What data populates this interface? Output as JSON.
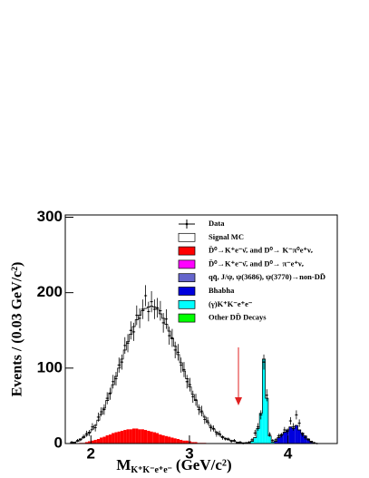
{
  "chart_data": {
    "type": "histogram",
    "y_label": "Events / (0.03 GeV/c²)",
    "x_label": {
      "main": "M",
      "sub": "K⁺K⁻e⁺e⁻",
      "unit": "(GeV/c²)"
    },
    "bins": [
      1.79,
      1.82,
      1.85,
      1.88,
      1.91,
      1.94,
      1.97,
      2.0,
      2.03,
      2.06,
      2.09,
      2.12,
      2.15,
      2.18,
      2.21,
      2.24,
      2.27,
      2.3,
      2.33,
      2.36,
      2.39,
      2.42,
      2.45,
      2.48,
      2.51,
      2.54,
      2.57,
      2.6,
      2.63,
      2.66,
      2.69,
      2.72,
      2.75,
      2.78,
      2.81,
      2.84,
      2.87,
      2.9,
      2.93,
      2.96,
      2.99,
      3.02,
      3.05,
      3.08,
      3.11,
      3.14,
      3.17,
      3.2,
      3.23,
      3.26,
      3.29,
      3.32,
      3.35,
      3.38,
      3.41,
      3.44,
      3.47,
      3.5,
      3.53,
      3.56,
      3.59,
      3.62,
      3.65,
      3.68,
      3.71,
      3.74,
      3.77,
      3.8,
      3.83,
      3.86,
      3.89,
      3.92,
      3.95,
      3.98,
      4.01,
      4.04,
      4.07,
      4.1,
      4.13,
      4.16,
      4.19,
      4.22,
      4.25,
      4.28,
      4.31
    ],
    "xlim": [
      1.74,
      4.5
    ],
    "xticks": [
      2,
      3,
      4
    ],
    "ylim": [
      0,
      303
    ],
    "yticks": [
      0,
      100,
      200,
      300
    ],
    "series": [
      {
        "name": "Data",
        "style": "points",
        "color": "#000000",
        "values": [
          2,
          1,
          4,
          5,
          9,
          13,
          14,
          22,
          21,
          35,
          42,
          45,
          60,
          66,
          82,
          86,
          104,
          108,
          130,
          133,
          150,
          148,
          170,
          166,
          178,
          196,
          175,
          188,
          178,
          180,
          176,
          160,
          165,
          143,
          140,
          124,
          121,
          104,
          98,
          82,
          78,
          62,
          58,
          45,
          43,
          32,
          30,
          21,
          20,
          13,
          13,
          8,
          6,
          6,
          3,
          4,
          1,
          2,
          0,
          1,
          2,
          5,
          14,
          22,
          38,
          108,
          64,
          12,
          4,
          5,
          10,
          11,
          18,
          16,
          30,
          22,
          38,
          27,
          12,
          8,
          5,
          2,
          1,
          0
        ],
        "errors": [
          1,
          1,
          2,
          2,
          3,
          4,
          4,
          5,
          5,
          6,
          6,
          7,
          8,
          8,
          9,
          9,
          10,
          10,
          11,
          12,
          12,
          12,
          13,
          13,
          13,
          14,
          13,
          14,
          13,
          13,
          13,
          13,
          13,
          12,
          12,
          11,
          11,
          10,
          10,
          9,
          9,
          8,
          8,
          7,
          7,
          6,
          5,
          5,
          4,
          4,
          4,
          3,
          2,
          2,
          2,
          2,
          1,
          1,
          0,
          1,
          1,
          2,
          4,
          5,
          6,
          10,
          8,
          3,
          2,
          2,
          3,
          3,
          4,
          4,
          5,
          5,
          6,
          5,
          3,
          3,
          2,
          1,
          1,
          0
        ]
      },
      {
        "name": "Signal MC",
        "style": "outline",
        "color": "#ffffff",
        "values": [
          1,
          2,
          3,
          5,
          7,
          9,
          12,
          15,
          19,
          25,
          31,
          38,
          46,
          55,
          64,
          74,
          84,
          95,
          106,
          116,
          126,
          135,
          144,
          151,
          157,
          161,
          164,
          166,
          166,
          164,
          160,
          155,
          148,
          140,
          131,
          122,
          112,
          102,
          92,
          82,
          72,
          63,
          55,
          47,
          40,
          34,
          28,
          23,
          19,
          15,
          12,
          9,
          7,
          5,
          4,
          3,
          2,
          1,
          1,
          0,
          0,
          0,
          0,
          0,
          0,
          0,
          0,
          0,
          0,
          0,
          0,
          0,
          0,
          0,
          0,
          0,
          0,
          0,
          0,
          0,
          0,
          0,
          0,
          0
        ]
      },
      {
        "name": "D̄⁰→K⁺e⁻ν̄ₑ and D⁰→ K⁻π⁰e⁺νₑ",
        "style": "filled",
        "color": "#ff0000",
        "values": [
          0,
          0,
          0,
          1,
          1,
          2,
          3,
          4,
          5,
          6,
          8,
          9,
          11,
          12,
          14,
          15,
          16,
          17,
          18,
          19,
          19,
          20,
          20,
          19,
          19,
          18,
          17,
          16,
          15,
          14,
          12,
          11,
          10,
          9,
          8,
          7,
          6,
          5,
          4,
          4,
          3,
          2,
          2,
          1,
          1,
          1,
          0,
          0,
          0,
          0,
          0,
          0,
          0,
          0,
          0,
          0,
          0,
          0,
          0,
          0,
          0,
          0,
          0,
          0,
          0,
          0,
          0,
          0,
          0,
          0,
          0,
          0,
          0,
          0,
          0,
          0,
          0,
          0,
          0,
          0,
          0,
          0,
          0,
          0
        ]
      },
      {
        "name": "D̄⁰→K⁺e⁻ν̄ₑ and D⁰→ π⁻e⁺νₑ",
        "style": "filled",
        "color": "#ff00ff",
        "values": [
          0,
          0,
          0,
          0,
          0,
          0,
          0,
          0,
          0,
          0,
          0,
          0,
          0,
          0,
          0,
          0,
          0,
          0,
          0,
          0,
          0,
          0,
          0,
          0,
          0,
          0,
          0,
          0,
          0,
          0,
          0,
          0,
          0,
          0,
          0,
          0,
          0,
          0,
          0,
          0,
          0,
          0,
          0,
          0,
          0,
          0,
          0,
          0,
          0,
          0,
          0,
          0,
          0,
          0,
          0,
          0,
          0,
          0,
          0,
          0,
          0,
          0,
          0,
          0,
          0,
          0,
          0,
          0,
          0,
          0,
          0,
          0,
          0,
          0,
          0,
          0,
          0,
          0,
          0,
          0,
          0,
          0,
          0,
          0
        ]
      },
      {
        "name": "qq̄, J/ψ, ψ(3686), ψ(3770)→non-DD̄",
        "style": "filled",
        "color": "#6666cc",
        "values": [
          0,
          0,
          0,
          0,
          0,
          0,
          0,
          0,
          0,
          0,
          0,
          0,
          0,
          0,
          0,
          0,
          0,
          0,
          0,
          0,
          0,
          0,
          0,
          0,
          0,
          0,
          0,
          0,
          0,
          0,
          0,
          0,
          0,
          0,
          0,
          0,
          0,
          0,
          0,
          0,
          0,
          0,
          0,
          0,
          0,
          0,
          0,
          0,
          0,
          0,
          0,
          0,
          0,
          0,
          0,
          0,
          0,
          0,
          0,
          0,
          0,
          0,
          0,
          0,
          0,
          0,
          0,
          0,
          0,
          0,
          0,
          0,
          0,
          0,
          0,
          0,
          0,
          0,
          0,
          0,
          0,
          0,
          0,
          0
        ]
      },
      {
        "name": "Bhabha",
        "style": "filled",
        "color": "#0000dd",
        "values": [
          0,
          0,
          0,
          0,
          0,
          0,
          0,
          0,
          0,
          0,
          0,
          0,
          0,
          0,
          0,
          0,
          0,
          0,
          0,
          0,
          0,
          0,
          0,
          0,
          0,
          0,
          0,
          0,
          0,
          0,
          0,
          0,
          0,
          0,
          0,
          0,
          0,
          0,
          0,
          0,
          0,
          0,
          0,
          0,
          0,
          0,
          0,
          0,
          0,
          0,
          0,
          0,
          0,
          0,
          0,
          0,
          0,
          0,
          0,
          0,
          0,
          0,
          0,
          0,
          0,
          0,
          0,
          0,
          0,
          3,
          8,
          12,
          15,
          18,
          22,
          20,
          24,
          18,
          14,
          10,
          6,
          3,
          1,
          0
        ]
      },
      {
        "name": "(γ)K⁺K⁻e⁺e⁻",
        "style": "filled",
        "color": "#00ffff",
        "values": [
          0,
          0,
          0,
          0,
          0,
          0,
          0,
          0,
          0,
          0,
          0,
          0,
          0,
          0,
          0,
          0,
          0,
          0,
          0,
          0,
          0,
          0,
          0,
          0,
          0,
          0,
          0,
          0,
          0,
          0,
          0,
          0,
          0,
          0,
          0,
          0,
          0,
          0,
          0,
          0,
          0,
          0,
          0,
          0,
          0,
          0,
          0,
          0,
          0,
          0,
          0,
          0,
          0,
          0,
          0,
          0,
          0,
          0,
          0,
          0,
          1,
          3,
          8,
          20,
          40,
          112,
          60,
          10,
          2,
          0,
          0,
          0,
          0,
          0,
          0,
          0,
          0,
          0,
          0,
          0,
          0,
          0,
          0,
          0
        ]
      },
      {
        "name": "Other DD̄ Decays",
        "style": "filled",
        "color": "#00ff00",
        "values": [
          0,
          0,
          0,
          0,
          0,
          0,
          0,
          0,
          0,
          0,
          0,
          0,
          0,
          0,
          0,
          0,
          0,
          0,
          0,
          0,
          0,
          0,
          0,
          0,
          0,
          0,
          0,
          0,
          0,
          0,
          0,
          0,
          0,
          0,
          0,
          0,
          0,
          0,
          0,
          0,
          0,
          0,
          0,
          0,
          0,
          0,
          0,
          0,
          0,
          0,
          0,
          0,
          0,
          0,
          0,
          0,
          0,
          0,
          0,
          0,
          0,
          0,
          0,
          0,
          0,
          0,
          0,
          0,
          0,
          0,
          0,
          0,
          0,
          0,
          0,
          0,
          0,
          0,
          0,
          0,
          0,
          0,
          0,
          0
        ]
      }
    ]
  }
}
